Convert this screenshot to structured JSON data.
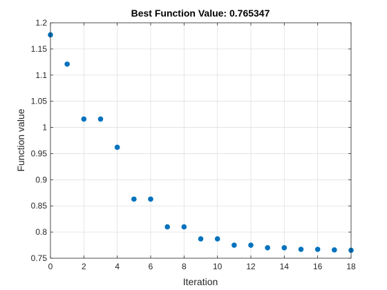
{
  "chart_data": {
    "type": "scatter",
    "title": "Best Function Value: 0.765347",
    "xlabel": "Iteration",
    "ylabel": "Function value",
    "xlim": [
      0,
      18
    ],
    "ylim": [
      0.75,
      1.2
    ],
    "grid": true,
    "x_ticks": [
      0,
      2,
      4,
      6,
      8,
      10,
      12,
      14,
      16,
      18
    ],
    "x_tick_labels": [
      "0",
      "2",
      "4",
      "6",
      "8",
      "10",
      "12",
      "14",
      "16",
      "18"
    ],
    "y_ticks": [
      0.75,
      0.8,
      0.85,
      0.9,
      0.95,
      1.0,
      1.05,
      1.1,
      1.15,
      1.2
    ],
    "y_tick_labels": [
      "0.75",
      "0.8",
      "0.85",
      "0.9",
      "0.95",
      "1",
      "1.05",
      "1.1",
      "1.15",
      "1.2"
    ],
    "series": [
      {
        "x": [
          0,
          1,
          2,
          3,
          4,
          5,
          6,
          7,
          8,
          9,
          10,
          11,
          12,
          13,
          14,
          15,
          16,
          17,
          18
        ],
        "y": [
          1.177,
          1.121,
          1.016,
          1.016,
          0.962,
          0.863,
          0.863,
          0.81,
          0.81,
          0.787,
          0.787,
          0.775,
          0.775,
          0.77,
          0.77,
          0.767,
          0.767,
          0.766,
          0.7653
        ],
        "color": "#0072BD"
      }
    ]
  }
}
